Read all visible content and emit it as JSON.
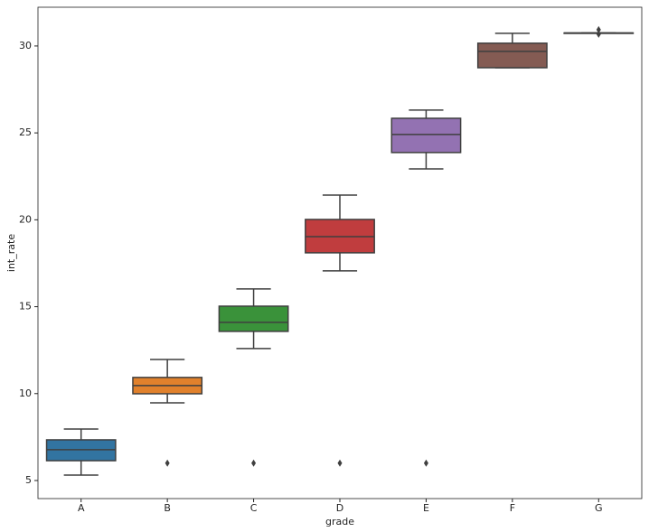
{
  "chart_data": {
    "type": "box",
    "x_label": "grade",
    "y_label": "int_rate",
    "categories": [
      "A",
      "B",
      "C",
      "D",
      "E",
      "F",
      "G"
    ],
    "colors": [
      "#3274a1",
      "#e1812c",
      "#3a923a",
      "#c03d3e",
      "#9372b2",
      "#845b53",
      "#d684bd"
    ],
    "boxes": [
      {
        "min": 5.31,
        "q1": 6.14,
        "median": 6.77,
        "q3": 7.34,
        "max": 7.96,
        "outliers": []
      },
      {
        "min": 9.47,
        "q1": 9.99,
        "median": 10.46,
        "q3": 10.93,
        "max": 11.96,
        "outliers": [
          6.0
        ]
      },
      {
        "min": 12.59,
        "q1": 13.58,
        "median": 14.1,
        "q3": 15.03,
        "max": 16.02,
        "outliers": [
          6.0
        ]
      },
      {
        "min": 17.06,
        "q1": 18.1,
        "median": 19.03,
        "q3": 20.02,
        "max": 21.42,
        "outliers": [
          6.0
        ]
      },
      {
        "min": 22.93,
        "q1": 23.87,
        "median": 24.91,
        "q3": 25.84,
        "max": 26.31,
        "outliers": [
          6.0
        ]
      },
      {
        "min": 28.75,
        "q1": 28.75,
        "median": 29.69,
        "q3": 30.16,
        "max": 30.73,
        "outliers": []
      },
      {
        "min": 30.75,
        "q1": 30.75,
        "median": 30.75,
        "q3": 30.75,
        "max": 30.75,
        "outliers": [
          30.94,
          30.68
        ]
      }
    ],
    "ylim": [
      3.96,
      32.23
    ],
    "yticks": [
      5,
      10,
      15,
      20,
      25,
      30
    ],
    "grid": false
  }
}
